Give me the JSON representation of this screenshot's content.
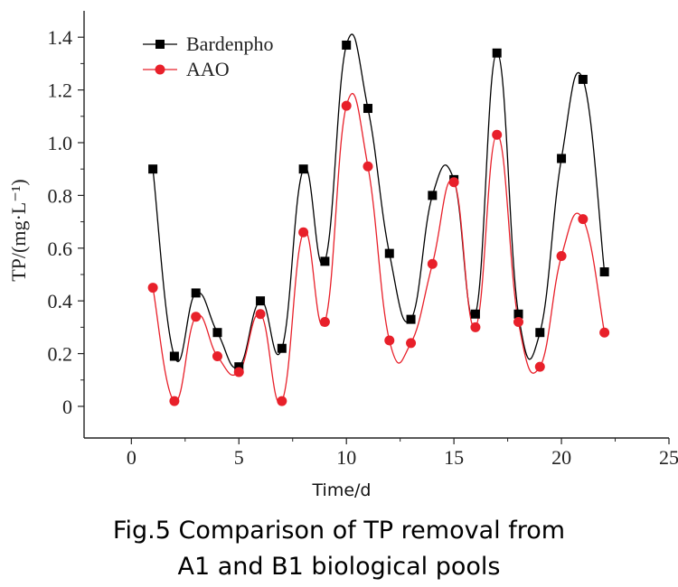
{
  "caption": {
    "line1": "Fig.5 Comparison of TP removal from",
    "line2": "A1 and B1 biological pools"
  },
  "chart_data": {
    "type": "line",
    "xlabel": "Time/d",
    "ylabel": "TP/(mg·L⁻¹)",
    "xlim": [
      -2.2,
      25
    ],
    "ylim": [
      -0.12,
      1.5
    ],
    "xticks": [
      0,
      5,
      10,
      15,
      20,
      25
    ],
    "yticks": [
      0,
      0.2,
      0.4,
      0.6,
      0.8,
      1.0,
      1.2,
      1.4
    ],
    "ytick_labels": [
      "0",
      "0.2",
      "0.4",
      "0.6",
      "0.8",
      "1.0",
      "1.2",
      "1.4"
    ],
    "legend_position": "top-left",
    "grid": false,
    "series": [
      {
        "name": "Bardenpho",
        "color": "#000000",
        "marker": "square",
        "x": [
          1,
          2,
          3,
          4,
          5,
          6,
          7,
          8,
          9,
          10,
          11,
          12,
          13,
          14,
          15,
          16,
          17,
          18,
          19,
          20,
          21,
          22
        ],
        "y": [
          0.9,
          0.19,
          0.43,
          0.28,
          0.15,
          0.4,
          0.22,
          0.9,
          0.55,
          1.37,
          1.13,
          0.58,
          0.33,
          0.8,
          0.86,
          0.35,
          1.34,
          0.35,
          0.28,
          0.94,
          1.24,
          0.51
        ]
      },
      {
        "name": "AAO",
        "color": "#e8202a",
        "marker": "circle",
        "x": [
          1,
          2,
          3,
          4,
          5,
          6,
          7,
          8,
          9,
          10,
          11,
          12,
          13,
          14,
          15,
          16,
          17,
          18,
          19,
          20,
          21,
          22
        ],
        "y": [
          0.45,
          0.02,
          0.34,
          0.19,
          0.13,
          0.35,
          0.02,
          0.66,
          0.32,
          1.14,
          0.91,
          0.25,
          0.24,
          0.54,
          0.85,
          0.3,
          1.03,
          0.32,
          0.15,
          0.57,
          0.71,
          0.28
        ]
      }
    ]
  }
}
